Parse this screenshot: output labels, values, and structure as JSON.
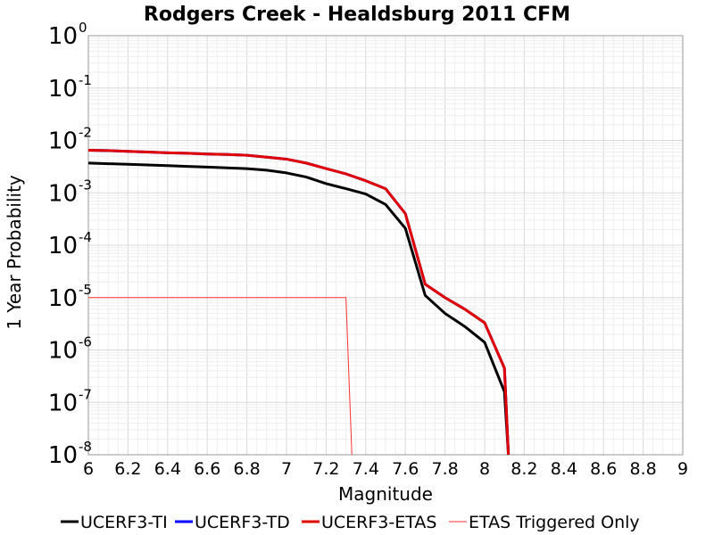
{
  "chart_data": {
    "type": "line",
    "title": "Rodgers Creek - Healdsburg 2011 CFM",
    "xlabel": "Magnitude",
    "ylabel": "1 Year Probability",
    "xlim": [
      6,
      9
    ],
    "ylim": [
      1e-08,
      1
    ],
    "yscale": "log",
    "x_ticks": [
      "6",
      "6.2",
      "6.4",
      "6.6",
      "6.8",
      "7",
      "7.2",
      "7.4",
      "7.6",
      "7.8",
      "8",
      "8.2",
      "8.4",
      "8.6",
      "8.8",
      "9"
    ],
    "y_ticks": [
      {
        "base": "10",
        "exp": "0"
      },
      {
        "base": "10",
        "exp": "-1"
      },
      {
        "base": "10",
        "exp": "-2"
      },
      {
        "base": "10",
        "exp": "-3"
      },
      {
        "base": "10",
        "exp": "-4"
      },
      {
        "base": "10",
        "exp": "-5"
      },
      {
        "base": "10",
        "exp": "-6"
      },
      {
        "base": "10",
        "exp": "-7"
      },
      {
        "base": "10",
        "exp": "-8"
      }
    ],
    "legend_position": "bottom",
    "series": [
      {
        "name": "UCERF3-TI",
        "color": "#000000",
        "x": [
          6.0,
          6.1,
          6.2,
          6.3,
          6.4,
          6.5,
          6.6,
          6.7,
          6.8,
          6.9,
          7.0,
          7.1,
          7.2,
          7.3,
          7.4,
          7.5,
          7.6,
          7.7,
          7.8,
          7.9,
          8.0,
          8.1,
          8.12
        ],
        "y": [
          0.0037,
          0.0036,
          0.0035,
          0.0034,
          0.0033,
          0.0032,
          0.0031,
          0.003,
          0.0029,
          0.0027,
          0.0024,
          0.002,
          0.0015,
          0.0012,
          0.00095,
          0.0006,
          0.00021,
          1.1e-05,
          5e-06,
          2.8e-06,
          1.4e-06,
          1.6e-07,
          1e-08
        ]
      },
      {
        "name": "UCERF3-TD",
        "color": "#0000ff",
        "x": [
          6.0,
          6.1,
          6.2,
          6.3,
          6.4,
          6.5,
          6.6,
          6.7,
          6.8,
          6.9,
          7.0,
          7.1,
          7.2,
          7.3,
          7.4,
          7.5,
          7.6,
          7.7,
          7.8,
          7.9,
          8.0,
          8.1,
          8.12
        ],
        "y": [
          0.0065,
          0.0064,
          0.0062,
          0.006,
          0.0058,
          0.0057,
          0.0055,
          0.0054,
          0.0052,
          0.0048,
          0.0044,
          0.0037,
          0.0029,
          0.0023,
          0.0017,
          0.0012,
          0.0004,
          1.8e-05,
          1e-05,
          6e-06,
          3.3e-06,
          4.5e-07,
          1e-08
        ]
      },
      {
        "name": "UCERF3-ETAS",
        "color": "#e00000",
        "x": [
          6.0,
          6.1,
          6.2,
          6.3,
          6.4,
          6.5,
          6.6,
          6.7,
          6.8,
          6.9,
          7.0,
          7.1,
          7.2,
          7.3,
          7.4,
          7.5,
          7.6,
          7.7,
          7.8,
          7.9,
          8.0,
          8.1,
          8.12
        ],
        "y": [
          0.0065,
          0.0064,
          0.0062,
          0.006,
          0.0058,
          0.0057,
          0.0055,
          0.0054,
          0.0052,
          0.0048,
          0.0044,
          0.0037,
          0.0029,
          0.0023,
          0.0017,
          0.0012,
          0.0004,
          1.8e-05,
          1e-05,
          6e-06,
          3.3e-06,
          4.5e-07,
          1e-08
        ]
      },
      {
        "name": "ETAS Triggered Only",
        "color": "#ff3030",
        "x": [
          6.0,
          7.3,
          7.33
        ],
        "y": [
          1e-05,
          1e-05,
          1e-08
        ]
      }
    ]
  }
}
